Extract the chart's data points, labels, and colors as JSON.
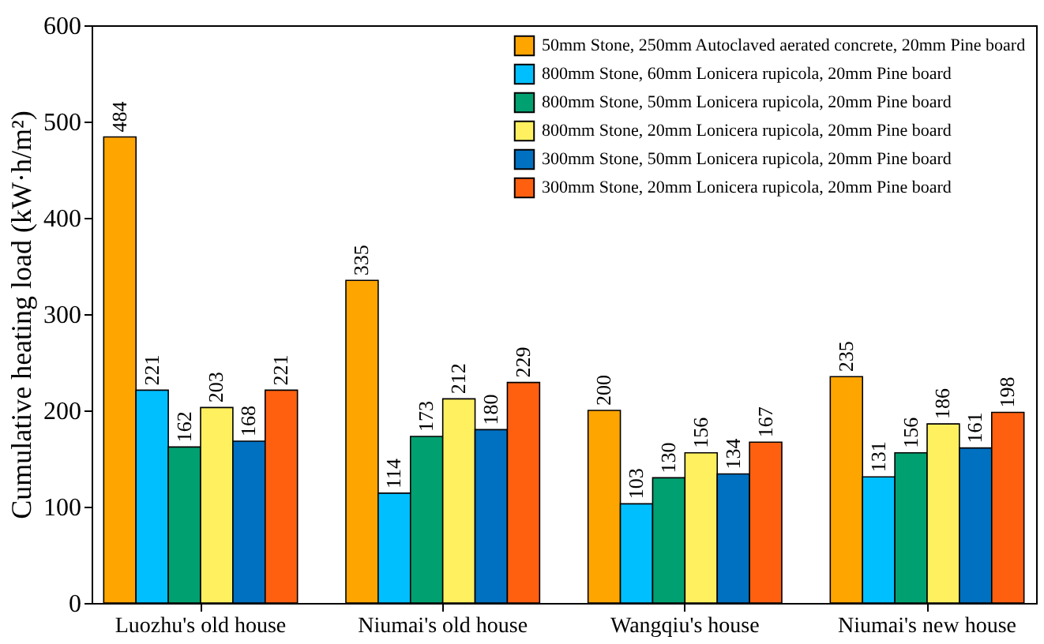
{
  "chart_data": {
    "type": "bar",
    "ylabel": "Cumulative heating load (kW·h/m²)",
    "categories": [
      "Luozhu's old house",
      "Niumai's old house",
      "Wangqiu's house",
      "Niumai's new house"
    ],
    "series": [
      {
        "name": "50mm Stone, 250mm Autoclaved aerated concrete, 20mm Pine board",
        "color": "#ffa500",
        "values": [
          484,
          335,
          200,
          235
        ]
      },
      {
        "name": "800mm Stone, 60mm Lonicera rupicola, 20mm Pine board",
        "color": "#00bfff",
        "values": [
          221,
          114,
          103,
          131
        ]
      },
      {
        "name": "800mm Stone, 50mm Lonicera rupicola, 20mm Pine board",
        "color": "#00a070",
        "values": [
          162,
          173,
          130,
          156
        ]
      },
      {
        "name": "800mm Stone, 20mm Lonicera rupicola, 20mm Pine board",
        "color": "#fff060",
        "values": [
          203,
          212,
          156,
          186
        ]
      },
      {
        "name": "300mm Stone, 50mm Lonicera rupicola, 20mm Pine board",
        "color": "#0070c0",
        "values": [
          168,
          180,
          134,
          161
        ]
      },
      {
        "name": "300mm Stone, 20mm Lonicera rupicola, 20mm Pine board",
        "color": "#ff6010",
        "values": [
          221,
          229,
          167,
          198
        ]
      }
    ],
    "ylim": [
      0,
      600
    ],
    "yticks": [
      0,
      100,
      200,
      300,
      400,
      500,
      600
    ],
    "data_labels": true,
    "legend": "top right",
    "grid": false
  }
}
